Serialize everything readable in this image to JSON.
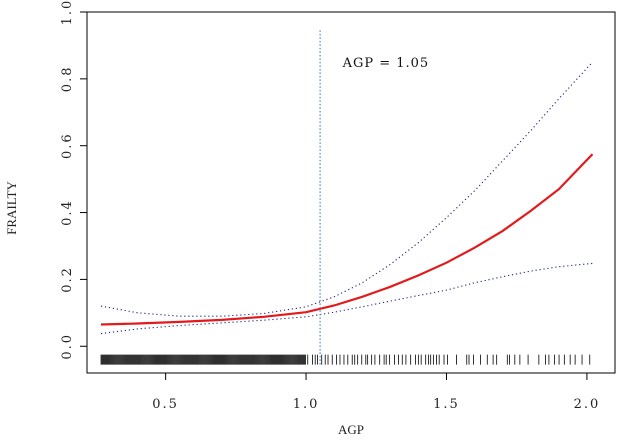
{
  "chart_data": {
    "type": "line",
    "title": "",
    "xlabel": "AGP",
    "ylabel": "FRAILTY",
    "xlim": [
      0.22,
      2.1
    ],
    "ylim": [
      -0.08,
      1.0
    ],
    "xticks": [
      {
        "value": 0.5,
        "label": "0.5"
      },
      {
        "value": 1.0,
        "label": "1.0"
      },
      {
        "value": 1.5,
        "label": "1.5"
      },
      {
        "value": 2.0,
        "label": "2.0"
      }
    ],
    "yticks": [
      {
        "value": 0.0,
        "label": "0.0"
      },
      {
        "value": 0.2,
        "label": "0.2"
      },
      {
        "value": 0.4,
        "label": "0.4"
      },
      {
        "value": 0.6,
        "label": "0.6"
      },
      {
        "value": 0.8,
        "label": "0.8"
      },
      {
        "value": 1.0,
        "label": "1.0"
      }
    ],
    "grid": false,
    "legend": "none",
    "x": [
      0.27,
      0.4,
      0.55,
      0.7,
      0.85,
      1.0,
      1.1,
      1.2,
      1.3,
      1.4,
      1.5,
      1.6,
      1.7,
      1.8,
      1.9,
      2.02
    ],
    "series": [
      {
        "role": "estimate",
        "style": "solid",
        "color": "#e31a1c",
        "values": [
          0.065,
          0.068,
          0.073,
          0.079,
          0.088,
          0.102,
          0.122,
          0.148,
          0.178,
          0.212,
          0.25,
          0.295,
          0.345,
          0.405,
          0.47,
          0.575
        ]
      },
      {
        "role": "upper-ci",
        "style": "dotted",
        "color": "#1a237e",
        "values": [
          0.12,
          0.1,
          0.09,
          0.09,
          0.098,
          0.118,
          0.148,
          0.19,
          0.245,
          0.31,
          0.385,
          0.465,
          0.555,
          0.645,
          0.74,
          0.85
        ]
      },
      {
        "role": "lower-ci",
        "style": "dotted",
        "color": "#1a237e",
        "values": [
          0.038,
          0.052,
          0.062,
          0.07,
          0.078,
          0.088,
          0.102,
          0.118,
          0.135,
          0.152,
          0.168,
          0.19,
          0.208,
          0.225,
          0.238,
          0.248
        ]
      }
    ],
    "cutoff": {
      "x": 1.05,
      "color": "#5b9bd5",
      "style": "dotted",
      "label": "AGP = 1.05",
      "label_x": 1.13,
      "label_y": 0.835
    },
    "rug_region": {
      "dense_from": 0.27,
      "dense_to": 1.0
    }
  }
}
